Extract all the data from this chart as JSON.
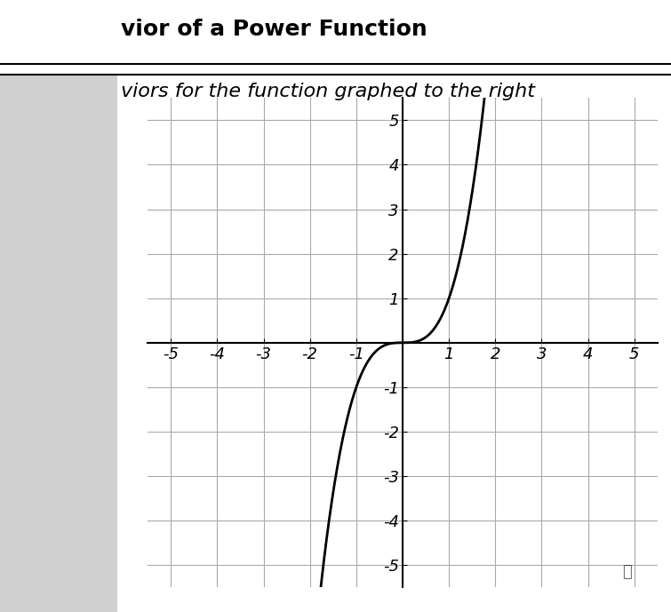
{
  "title1": "vior of a Power Function",
  "title2": "viors for the function graphed to the right",
  "xlim": [
    -5.5,
    5.5
  ],
  "ylim": [
    -5.5,
    5.5
  ],
  "function": "x^3",
  "curve_color": "#000000",
  "curve_linewidth": 2.0,
  "grid_color": "#aaaaaa",
  "background_color": "#ffffff",
  "axis_color": "#000000",
  "tick_fontsize": 13,
  "title1_fontsize": 18,
  "title2_fontsize": 16,
  "left_panel_color": "#d0d0d0"
}
